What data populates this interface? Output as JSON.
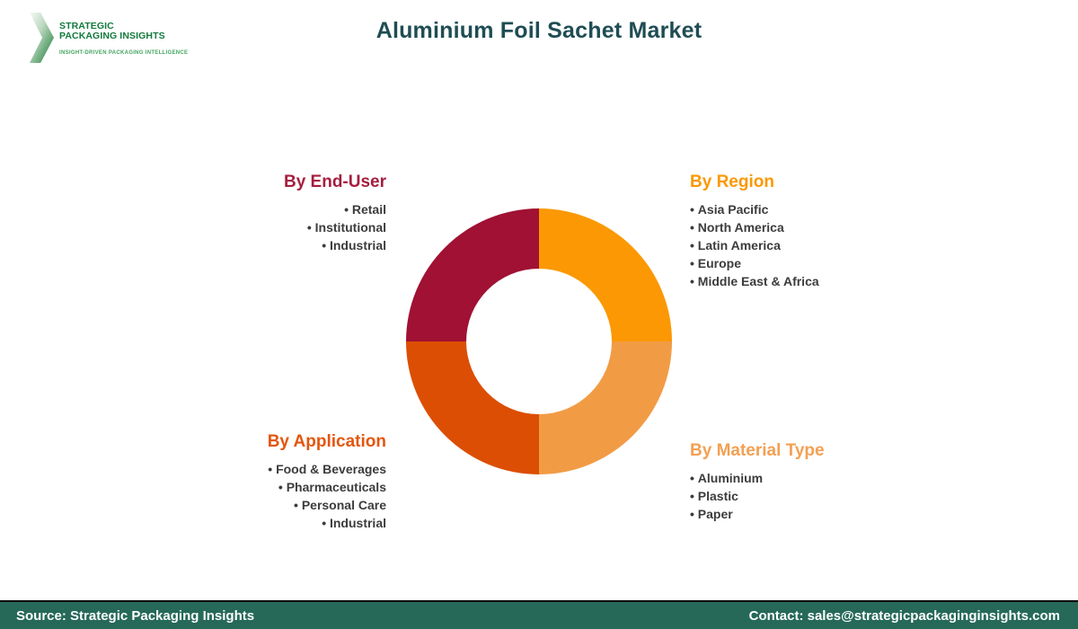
{
  "title": "Aluminium Foil Sachet Market",
  "logo": {
    "name_line1": "STRATEGIC",
    "name_line2": "PACKAGING INSIGHTS",
    "tagline": "INSIGHT-DRIVEN PACKAGING INTELLIGENCE",
    "brand_green": "#117A3D",
    "tagline_green": "#43A45F"
  },
  "segments": [
    {
      "heading": "By End-User",
      "color": "#A51E3E",
      "align": "right",
      "items": [
        "Retail",
        "Institutional",
        "Industrial"
      ]
    },
    {
      "heading": "By Region",
      "color": "#FB9803",
      "align": "left",
      "items": [
        "Asia Pacific",
        "North America",
        "Latin America",
        "Europe",
        "Middle East & Africa"
      ]
    },
    {
      "heading": "By Application",
      "color": "#E4560D",
      "align": "right",
      "items": [
        "Food & Beverages",
        "Pharmaceuticals",
        "Personal Care",
        "Industrial"
      ]
    },
    {
      "heading": "By Material Type",
      "color": "#F3A053",
      "align": "left",
      "items": [
        "Aluminium",
        "Plastic",
        "Paper"
      ]
    }
  ],
  "chart_data": {
    "type": "pie",
    "subtype": "donut",
    "title": "Aluminium Foil Sachet Market",
    "inner_radius_ratio": 0.55,
    "start_angle_deg": 0,
    "slices": [
      {
        "label": "By Region",
        "value": 25,
        "color": "#FB9803",
        "quadrant": "top-right"
      },
      {
        "label": "By Material Type",
        "value": 25,
        "color": "#F29B45",
        "quadrant": "bottom-right"
      },
      {
        "label": "By Application",
        "value": 25,
        "color": "#DC4E04",
        "quadrant": "bottom-left"
      },
      {
        "label": "By End-User",
        "value": 25,
        "color": "#A01133",
        "quadrant": "top-left"
      }
    ]
  },
  "footer": {
    "source": "Source: Strategic Packaging Insights",
    "contact": "Contact: sales@strategicpackaginginsights.com",
    "bar_color": "#266959"
  },
  "theme": {
    "title_color": "#1F4D54"
  }
}
